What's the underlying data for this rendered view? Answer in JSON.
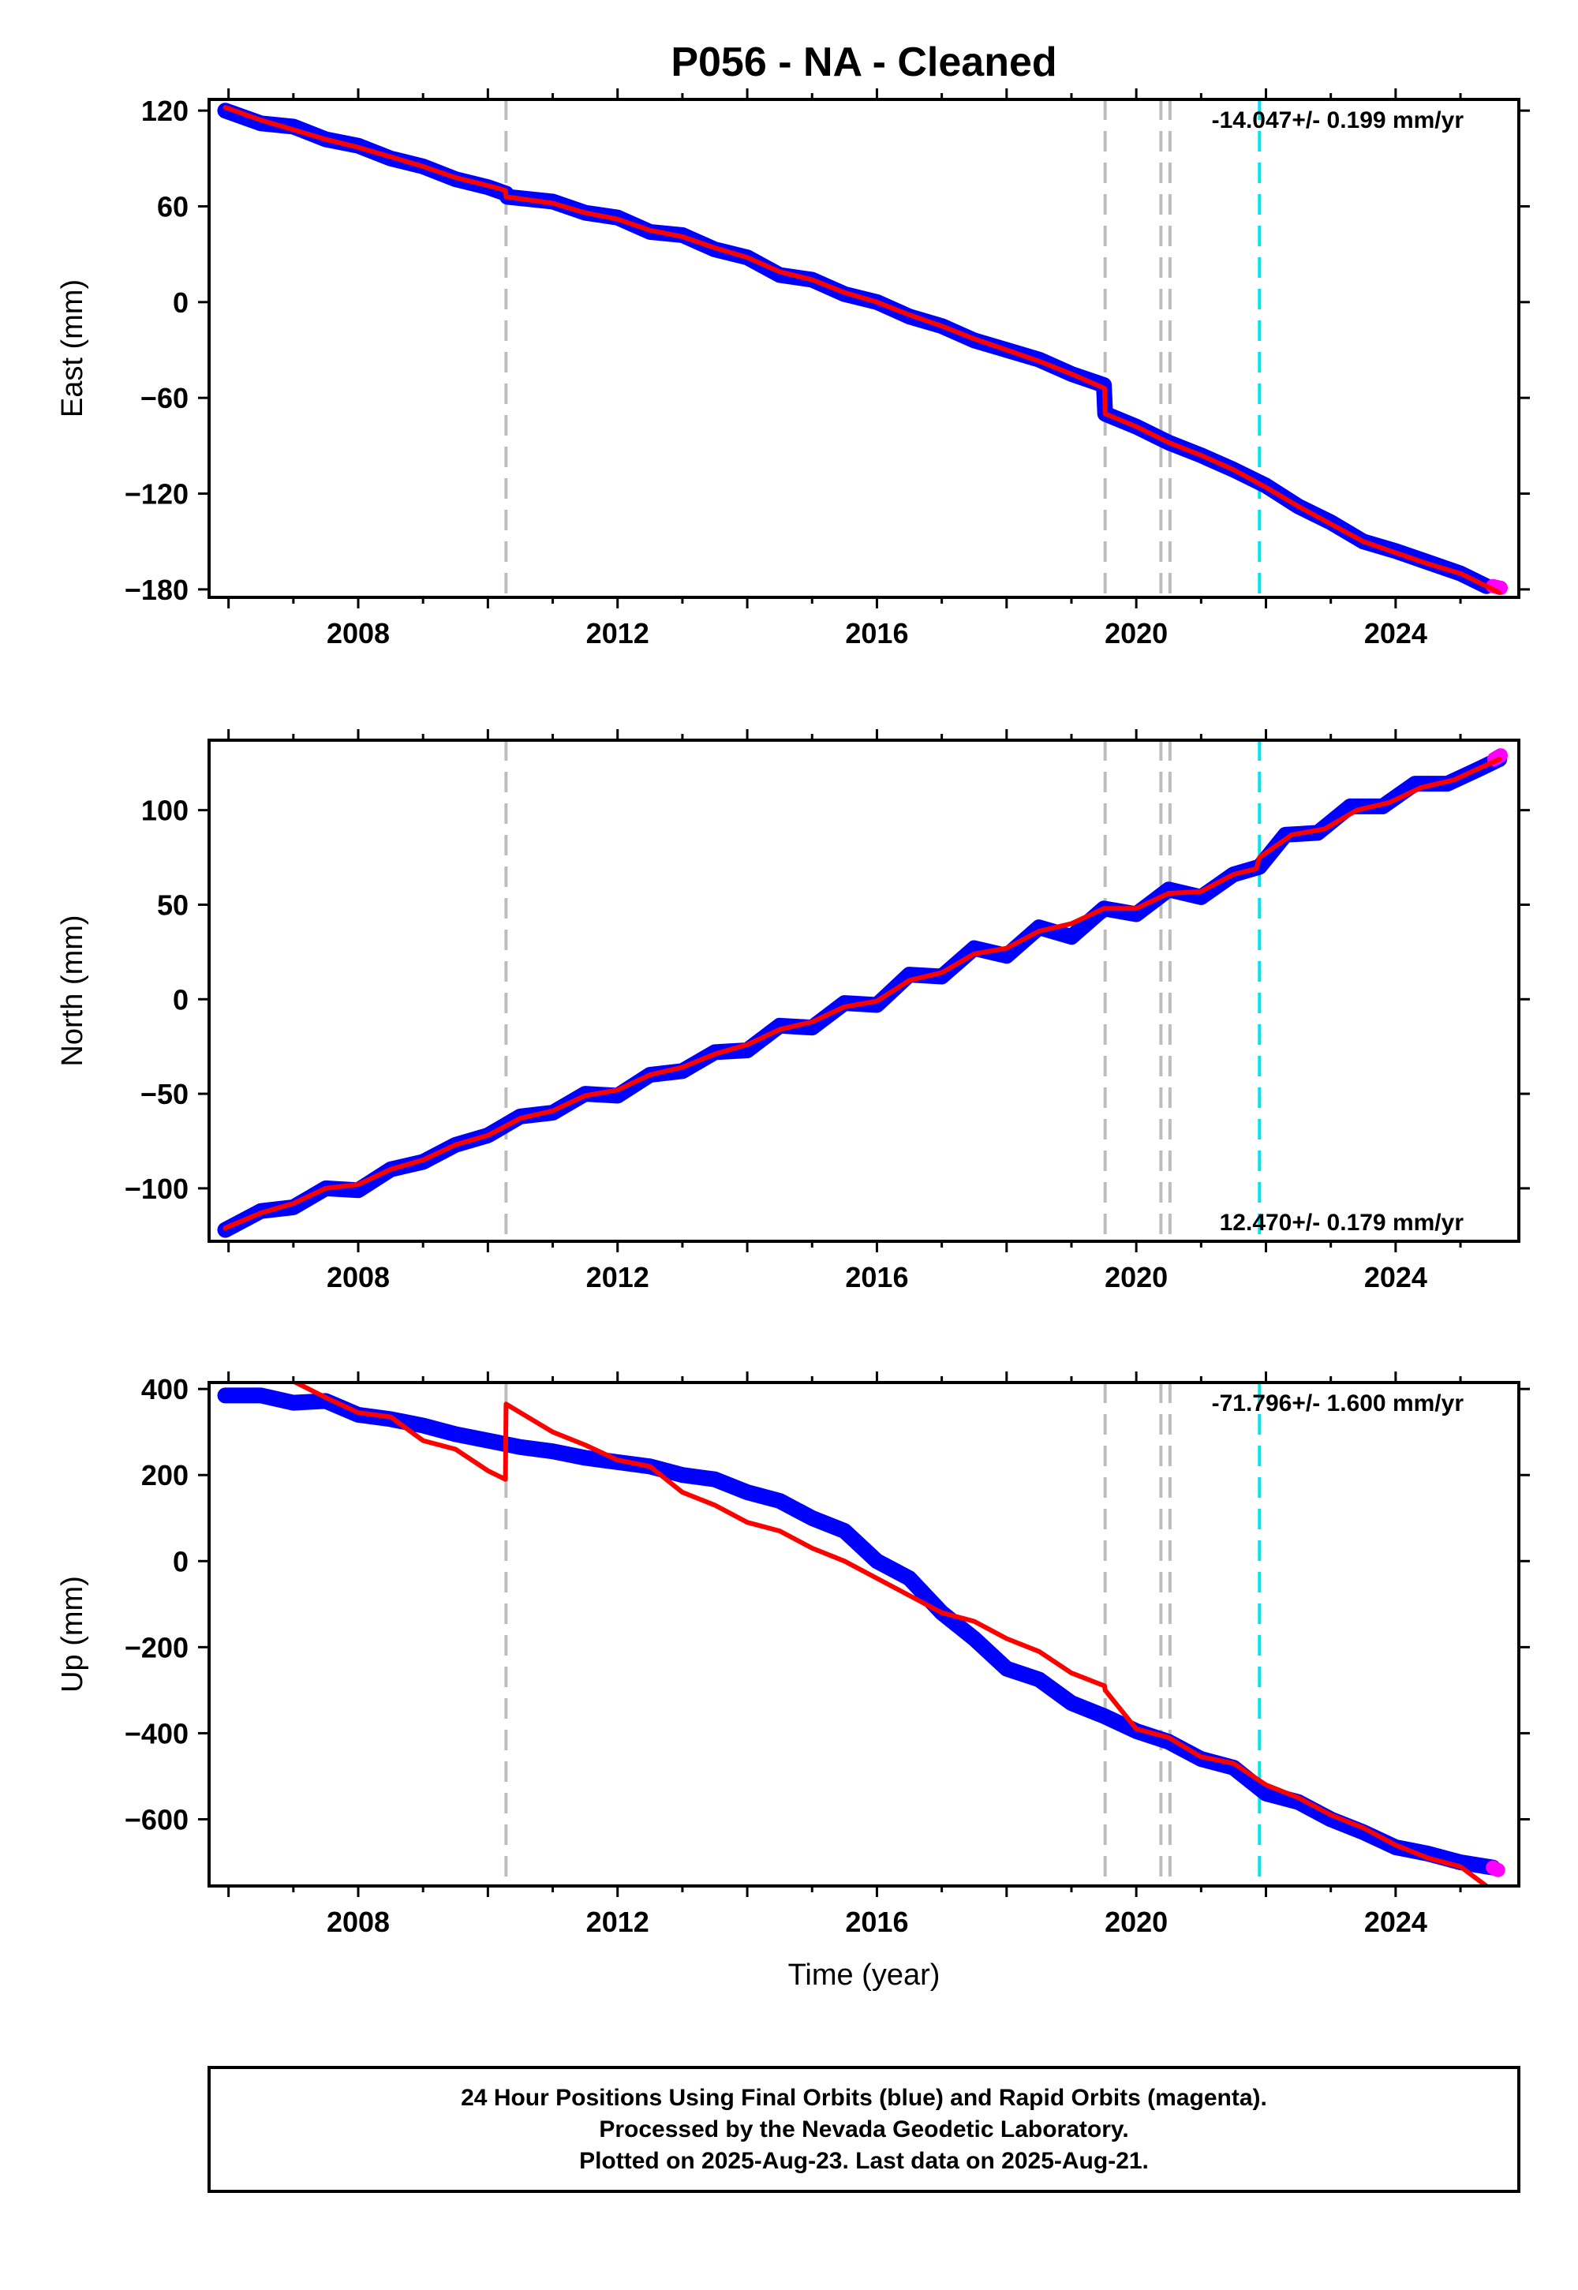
{
  "chart_data": {
    "type": "line",
    "title": "P056  - NA - Cleaned",
    "xlabel": "Time (year)",
    "xlim": [
      2005.7,
      2025.9
    ],
    "xticks": [
      2008,
      2012,
      2016,
      2020,
      2024
    ],
    "event_lines": {
      "gray": [
        2010.28,
        2019.52,
        2020.38,
        2020.52
      ],
      "cyan": [
        2021.9
      ]
    },
    "colors": {
      "final_orbits": "#0000ff",
      "rapid_orbits": "#ff00ff",
      "model": "#ff0000",
      "event_gray": "#bdbdbd",
      "event_cyan": "#00e5ee"
    },
    "panels": [
      {
        "component": "east",
        "ylabel": "East (mm)",
        "ylim": [
          -185,
          127
        ],
        "yticks": [
          120,
          60,
          0,
          -60,
          -120,
          -180
        ],
        "rate_label": "-14.047+/- 0.199 mm/yr",
        "rate_position": "top-right",
        "series": [
          {
            "name": "Final Orbits",
            "x": [
              2005.95,
              2006.5,
              2007.0,
              2007.5,
              2008.0,
              2008.5,
              2009.0,
              2009.5,
              2010.0,
              2010.28,
              2010.3,
              2011.0,
              2011.5,
              2012.0,
              2012.5,
              2013.0,
              2013.5,
              2014.0,
              2014.5,
              2015.0,
              2015.5,
              2016.0,
              2016.5,
              2017.0,
              2017.5,
              2018.0,
              2018.5,
              2019.0,
              2019.5,
              2019.52,
              2020.0,
              2020.5,
              2021.0,
              2021.5,
              2022.0,
              2022.5,
              2023.0,
              2023.5,
              2024.0,
              2024.5,
              2025.0,
              2025.4
            ],
            "y": [
              120,
              112,
              110,
              102,
              98,
              90,
              85,
              77,
              72,
              68,
              66,
              63,
              56,
              53,
              44,
              42,
              33,
              28,
              17,
              14,
              5,
              0,
              -9,
              -15,
              -24,
              -30,
              -36,
              -45,
              -52,
              -70,
              -78,
              -88,
              -96,
              -105,
              -115,
              -128,
              -138,
              -150,
              -156,
              -163,
              -170,
              -178
            ]
          },
          {
            "name": "Rapid Orbits",
            "x": [
              2025.5,
              2025.62
            ],
            "y": [
              -178,
              -179
            ]
          },
          {
            "name": "Model",
            "x": [
              2005.95,
              2006.5,
              2007.0,
              2007.5,
              2008.0,
              2008.5,
              2009.0,
              2009.5,
              2010.0,
              2010.27,
              2010.28,
              2011.0,
              2011.5,
              2012.0,
              2012.5,
              2013.0,
              2013.5,
              2014.0,
              2014.5,
              2015.0,
              2015.5,
              2016.0,
              2016.5,
              2017.0,
              2017.5,
              2018.0,
              2018.5,
              2019.0,
              2019.51,
              2019.52,
              2020.0,
              2020.5,
              2021.0,
              2021.5,
              2022.0,
              2022.5,
              2023.0,
              2023.5,
              2024.0,
              2024.5,
              2025.0,
              2025.6
            ],
            "y": [
              122,
              114,
              108,
              102,
              97,
              91,
              85,
              78,
              73,
              70,
              66,
              62,
              56,
              52,
              45,
              41,
              34,
              28,
              19,
              14,
              6,
              0,
              -8,
              -15,
              -23,
              -30,
              -37,
              -45,
              -54,
              -70,
              -78,
              -88,
              -96,
              -105,
              -116,
              -128,
              -139,
              -150,
              -157,
              -164,
              -170,
              -182
            ]
          }
        ]
      },
      {
        "component": "north",
        "ylabel": "North (mm)",
        "ylim": [
          -128,
          137
        ],
        "yticks": [
          100,
          50,
          0,
          -50,
          -100
        ],
        "rate_label": "12.470+/- 0.179 mm/yr",
        "rate_position": "bottom-right",
        "series": [
          {
            "name": "Final Orbits",
            "x": [
              2005.95,
              2006.5,
              2007.0,
              2007.5,
              2008.0,
              2008.5,
              2009.0,
              2009.5,
              2010.0,
              2010.5,
              2011.0,
              2011.5,
              2012.0,
              2012.5,
              2013.0,
              2013.5,
              2014.0,
              2014.5,
              2015.0,
              2015.5,
              2016.0,
              2016.5,
              2017.0,
              2017.5,
              2018.0,
              2018.5,
              2019.0,
              2019.5,
              2020.0,
              2020.5,
              2021.0,
              2021.5,
              2021.9,
              2022.3,
              2022.8,
              2023.3,
              2023.8,
              2024.3,
              2024.8,
              2025.3,
              2025.6
            ],
            "y": [
              -122,
              -112,
              -110,
              -100,
              -101,
              -90,
              -86,
              -77,
              -72,
              -62,
              -60,
              -50,
              -51,
              -40,
              -38,
              -28,
              -27,
              -14,
              -15,
              -2,
              -3,
              13,
              12,
              27,
              23,
              38,
              33,
              48,
              45,
              58,
              54,
              66,
              70,
              87,
              88,
              102,
              102,
              114,
              114,
              122,
              127
            ]
          },
          {
            "name": "Rapid Orbits",
            "x": [
              2025.52,
              2025.62
            ],
            "y": [
              127,
              129
            ]
          },
          {
            "name": "Model",
            "x": [
              2005.95,
              2006.5,
              2007.0,
              2007.5,
              2008.0,
              2008.5,
              2009.0,
              2009.5,
              2010.0,
              2010.5,
              2011.0,
              2011.5,
              2012.0,
              2012.5,
              2013.0,
              2013.5,
              2014.0,
              2014.5,
              2015.0,
              2015.5,
              2016.0,
              2016.5,
              2017.0,
              2017.5,
              2018.0,
              2018.5,
              2019.0,
              2019.5,
              2020.0,
              2020.5,
              2021.0,
              2021.5,
              2021.85,
              2021.9,
              2022.4,
              2022.9,
              2023.4,
              2023.9,
              2024.4,
              2024.9,
              2025.6
            ],
            "y": [
              -121,
              -113,
              -108,
              -100,
              -98,
              -90,
              -85,
              -77,
              -72,
              -63,
              -59,
              -51,
              -48,
              -40,
              -36,
              -29,
              -24,
              -16,
              -12,
              -4,
              -1,
              10,
              14,
              24,
              27,
              36,
              40,
              48,
              48,
              56,
              57,
              66,
              69,
              75,
              87,
              90,
              100,
              104,
              112,
              116,
              127
            ]
          }
        ]
      },
      {
        "component": "up",
        "ylabel": "Up (mm)",
        "ylim": [
          -755,
          415
        ],
        "yticks": [
          400,
          200,
          0,
          -200,
          -400,
          -600
        ],
        "rate_label": "-71.796+/- 1.600 mm/yr",
        "rate_position": "top-right",
        "series": [
          {
            "name": "Final Orbits",
            "x": [
              2005.95,
              2006.5,
              2007.0,
              2007.5,
              2008.0,
              2008.5,
              2009.0,
              2009.5,
              2010.0,
              2010.5,
              2011.0,
              2011.5,
              2012.0,
              2012.5,
              2013.0,
              2013.5,
              2014.0,
              2014.5,
              2015.0,
              2015.5,
              2016.0,
              2016.5,
              2017.0,
              2017.5,
              2018.0,
              2018.5,
              2019.0,
              2019.5,
              2020.0,
              2020.5,
              2021.0,
              2021.5,
              2022.0,
              2022.5,
              2023.0,
              2023.5,
              2024.0,
              2024.5,
              2025.0,
              2025.5
            ],
            "y": [
              385,
              385,
              368,
              372,
              340,
              330,
              315,
              295,
              280,
              265,
              255,
              240,
              230,
              220,
              200,
              190,
              160,
              140,
              100,
              70,
              0,
              -40,
              -120,
              -180,
              -250,
              -275,
              -330,
              -360,
              -395,
              -420,
              -460,
              -480,
              -540,
              -560,
              -600,
              -630,
              -665,
              -680,
              -700,
              -712
            ]
          },
          {
            "name": "Rapid Orbits",
            "x": [
              2025.5,
              2025.58
            ],
            "y": [
              -712,
              -718
            ]
          },
          {
            "name": "Model",
            "x": [
              2005.95,
              2006.5,
              2007.0,
              2007.5,
              2008.0,
              2008.5,
              2009.0,
              2009.5,
              2010.0,
              2010.27,
              2010.28,
              2011.0,
              2011.5,
              2012.0,
              2012.5,
              2013.0,
              2013.5,
              2014.0,
              2014.5,
              2015.0,
              2015.5,
              2016.0,
              2016.5,
              2017.0,
              2017.5,
              2018.0,
              2018.5,
              2019.0,
              2019.51,
              2019.52,
              2020.0,
              2020.5,
              2021.0,
              2021.5,
              2022.0,
              2022.5,
              2023.0,
              2023.5,
              2024.0,
              2024.5,
              2025.0,
              2025.4
            ],
            "y": [
              420,
              420,
              418,
              380,
              345,
              335,
              280,
              260,
              210,
              190,
              365,
              300,
              270,
              235,
              220,
              160,
              130,
              90,
              70,
              30,
              0,
              -40,
              -80,
              -120,
              -140,
              -180,
              -210,
              -260,
              -290,
              -300,
              -390,
              -410,
              -455,
              -470,
              -520,
              -550,
              -590,
              -620,
              -660,
              -690,
              -710,
              -755
            ]
          }
        ]
      }
    ]
  },
  "caption": {
    "line1": "24 Hour Positions Using Final Orbits (blue) and Rapid Orbits (magenta).",
    "line2": "Processed by the Nevada Geodetic Laboratory.",
    "line3": "Plotted on 2025-Aug-23. Last data on 2025-Aug-21."
  }
}
